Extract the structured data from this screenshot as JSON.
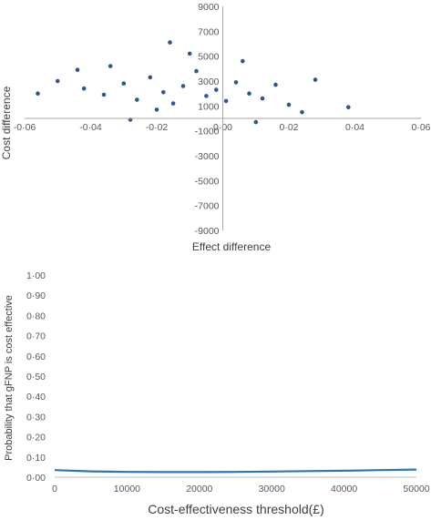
{
  "chart_data": [
    {
      "type": "scatter",
      "xlabel": "Effect difference",
      "ylabel": "Cost difference",
      "xlim": [
        -0.06,
        0.06
      ],
      "ylim": [
        -9000,
        9000
      ],
      "xticks": [
        -0.06,
        -0.04,
        -0.02,
        0.0,
        0.02,
        0.04,
        0.06
      ],
      "xtick_labels": [
        "-0·06",
        "-0·04",
        "-0·02",
        "0·00",
        "0·02",
        "0·04",
        "0·06"
      ],
      "yticks": [
        9000,
        7000,
        5000,
        3000,
        1000,
        -1000,
        -3000,
        -5000,
        -7000,
        -9000
      ],
      "ytick_labels": [
        "9000",
        "7000",
        "5000",
        "3000",
        "1000",
        "-1000",
        "-3000",
        "-5000",
        "-7000",
        "-9000"
      ],
      "axes_cross_at_origin": true,
      "grid": false,
      "point_color": "#2F5597",
      "series": [
        {
          "points": [
            [
              -0.042,
              2400
            ],
            [
              -0.036,
              1900
            ],
            [
              -0.03,
              2800
            ],
            [
              -0.026,
              1500
            ],
            [
              -0.022,
              3300
            ],
            [
              -0.018,
              2100
            ],
            [
              -0.015,
              1200
            ],
            [
              -0.012,
              2600
            ],
            [
              -0.008,
              3800
            ],
            [
              -0.005,
              1800
            ],
            [
              -0.002,
              2300
            ],
            [
              0.001,
              1400
            ],
            [
              0.004,
              2900
            ],
            [
              0.008,
              2000
            ],
            [
              0.012,
              1600
            ],
            [
              0.016,
              2700
            ],
            [
              0.02,
              1100
            ],
            [
              -0.05,
              3000
            ],
            [
              0.028,
              3100
            ],
            [
              -0.01,
              5200
            ],
            [
              -0.02,
              700
            ],
            [
              0.006,
              4600
            ],
            [
              -0.034,
              4200
            ],
            [
              0.024,
              500
            ],
            [
              -0.016,
              6100
            ],
            [
              0.038,
              900
            ],
            [
              -0.056,
              2000
            ],
            [
              -0.028,
              -100
            ],
            [
              0.01,
              -300
            ],
            [
              -0.044,
              3900
            ]
          ]
        }
      ]
    },
    {
      "type": "line",
      "xlabel": "Cost-effectiveness threshold(£)",
      "ylabel": "Probability that gFNP is cost effective",
      "xlim": [
        0,
        50000
      ],
      "ylim": [
        0,
        1
      ],
      "xticks": [
        0,
        10000,
        20000,
        30000,
        40000,
        50000
      ],
      "xtick_labels": [
        "0",
        "10000",
        "20000",
        "30000",
        "40000",
        "50000"
      ],
      "yticks": [
        0,
        0.1,
        0.2,
        0.3,
        0.4,
        0.5,
        0.6,
        0.7,
        0.8,
        0.9,
        1.0
      ],
      "ytick_labels": [
        "0·00",
        "0·10",
        "0·20",
        "0·30",
        "0·40",
        "0·50",
        "0·60",
        "0·70",
        "0·80",
        "0·90",
        "1·00"
      ],
      "grid": false,
      "line_color": "#2E75B6",
      "series": [
        {
          "x": [
            0,
            5000,
            10000,
            15000,
            20000,
            25000,
            30000,
            35000,
            40000,
            45000,
            50000
          ],
          "values": [
            0.035,
            0.029,
            0.026,
            0.025,
            0.025,
            0.026,
            0.028,
            0.03,
            0.032,
            0.035,
            0.038
          ]
        }
      ]
    }
  ]
}
